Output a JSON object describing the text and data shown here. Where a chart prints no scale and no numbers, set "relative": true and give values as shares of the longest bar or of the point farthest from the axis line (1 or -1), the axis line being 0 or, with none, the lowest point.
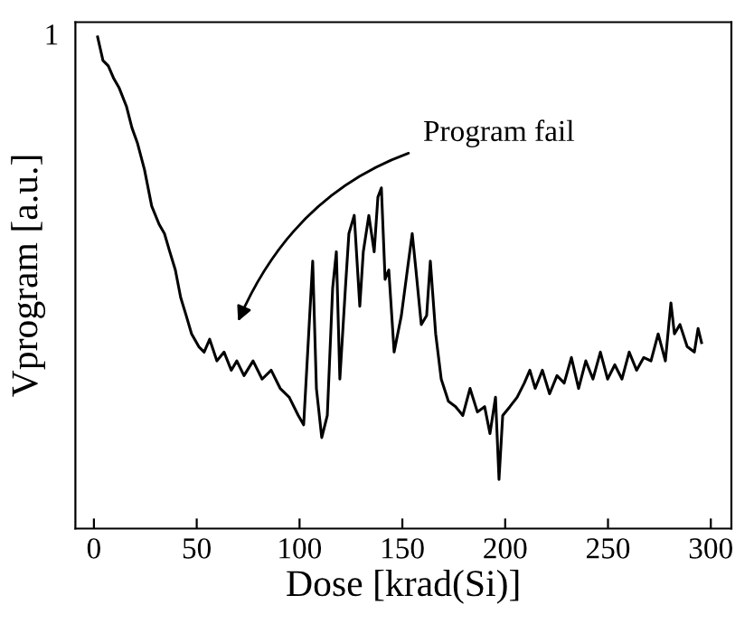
{
  "chart_data": {
    "type": "line",
    "xlabel": "Dose [krad(Si)]",
    "ylabel": "Vprogram [a.u.]",
    "relative": true,
    "xlim": [
      -9,
      310
    ],
    "xticks": [
      0,
      50,
      100,
      150,
      200,
      250,
      300
    ],
    "series": [
      {
        "color": "#000000",
        "x": [
          1.8,
          4.4,
          7.0,
          9.7,
          12.3,
          15.8,
          18.5,
          21.1,
          24.6,
          28.1,
          31.7,
          34.3,
          36.9,
          39.6,
          42.2,
          44.9,
          47.5,
          51.0,
          53.6,
          56.3,
          59.8,
          63.3,
          66.8,
          69.5,
          73.0,
          77.4,
          81.8,
          86.2,
          90.6,
          95.0,
          99.4,
          102.0,
          104.7,
          106.4,
          108.2,
          110.8,
          113.5,
          116.1,
          117.9,
          119.6,
          122.3,
          124.0,
          126.6,
          129.3,
          131.0,
          133.7,
          136.3,
          138.1,
          139.8,
          141.6,
          143.4,
          146.0,
          149.5,
          153.0,
          154.8,
          156.6,
          159.2,
          161.8,
          163.6,
          166.2,
          168.9,
          172.4,
          175.9,
          179.4,
          182.9,
          186.5,
          190.0,
          192.6,
          195.3,
          197.0,
          198.8,
          202.3,
          205.8,
          209.3,
          212.0,
          214.6,
          218.1,
          221.6,
          225.2,
          228.7,
          232.2,
          235.7,
          239.2,
          242.7,
          246.3,
          249.8,
          253.3,
          256.8,
          260.3,
          263.9,
          267.4,
          270.9,
          274.4,
          277.9,
          280.6,
          282.3,
          285.0,
          288.5,
          292.0,
          293.8,
          295.5
        ],
        "values": [
          1.0,
          0.952,
          0.941,
          0.915,
          0.896,
          0.859,
          0.815,
          0.785,
          0.73,
          0.656,
          0.619,
          0.6,
          0.563,
          0.526,
          0.47,
          0.433,
          0.396,
          0.37,
          0.359,
          0.385,
          0.341,
          0.359,
          0.322,
          0.341,
          0.311,
          0.341,
          0.304,
          0.322,
          0.285,
          0.267,
          0.23,
          0.211,
          0.415,
          0.544,
          0.285,
          0.185,
          0.23,
          0.489,
          0.563,
          0.304,
          0.489,
          0.6,
          0.637,
          0.452,
          0.563,
          0.637,
          0.563,
          0.674,
          0.693,
          0.507,
          0.526,
          0.359,
          0.433,
          0.544,
          0.6,
          0.526,
          0.415,
          0.433,
          0.544,
          0.396,
          0.304,
          0.259,
          0.248,
          0.23,
          0.285,
          0.237,
          0.248,
          0.193,
          0.267,
          0.1,
          0.23,
          0.248,
          0.267,
          0.296,
          0.322,
          0.285,
          0.322,
          0.274,
          0.311,
          0.296,
          0.348,
          0.285,
          0.341,
          0.304,
          0.359,
          0.304,
          0.333,
          0.304,
          0.359,
          0.322,
          0.348,
          0.341,
          0.396,
          0.341,
          0.459,
          0.396,
          0.415,
          0.37,
          0.359,
          0.407,
          0.378
        ]
      }
    ],
    "annotations": [
      "1",
      "Program fail"
    ],
    "grid": false,
    "legend": false,
    "marker": "none",
    "line_style": "solid"
  }
}
